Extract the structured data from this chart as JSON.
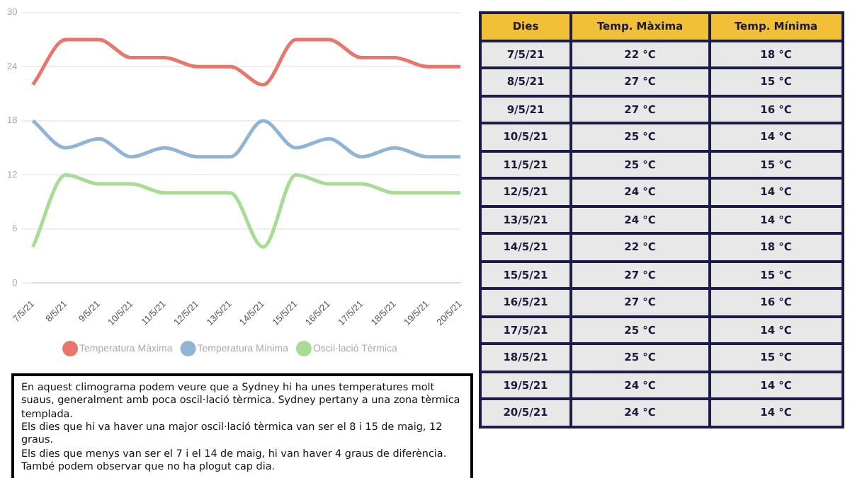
{
  "chart_data": [
    {
      "type": "line",
      "categories": [
        "7/5/21",
        "8/5/21",
        "9/5/21",
        "10/5/21",
        "11/5/21",
        "12/5/21",
        "13/5/21",
        "14/5/21",
        "15/5/21",
        "16/5/21",
        "17/5/21",
        "18/5/21",
        "19/5/21",
        "20/5/21"
      ],
      "series": [
        {
          "name": "Temperatura Màxima",
          "color": "#e8766b",
          "values": [
            22,
            27,
            27,
            25,
            25,
            24,
            24,
            22,
            27,
            27,
            25,
            25,
            24,
            24
          ]
        },
        {
          "name": "Temperatura Mínima",
          "color": "#8fb4d6",
          "values": [
            18,
            15,
            16,
            14,
            15,
            14,
            14,
            18,
            15,
            16,
            14,
            15,
            14,
            14
          ]
        },
        {
          "name": "Oscil·lació Tèrmica",
          "color": "#a8db94",
          "values": [
            4,
            12,
            11,
            11,
            10,
            10,
            10,
            4,
            12,
            11,
            11,
            10,
            10,
            10
          ]
        }
      ],
      "ylim": [
        0,
        30
      ],
      "yticks": [
        0,
        6,
        12,
        18,
        24,
        30
      ],
      "grid": "y",
      "legend": "bottom",
      "marker": "none",
      "annotations": [
        "En aquest climograma podem veure que a Sydney hi ha unes temperatures molt suaus, generalment amb poca oscil·lació tèrmica. Sydney pertany a una zona tèrmica templada.",
        "Els dies que hi va haver una major oscil·lació tèrmica van ser el 8 i 15 de maig, 12 graus.",
        "Els dies que menys van ser el 7 i el 14 de maig, hi van haver 4 graus de diferència. També podem observar que no ha plogut cap dia."
      ]
    },
    {
      "type": "heatmap",
      "ylabel": "Dies",
      "categories": [
        "Temp. Màxima",
        "Temp. Mínima"
      ],
      "y_categories": [
        "7/5/21",
        "8/5/21",
        "9/5/21",
        "10/5/21",
        "11/5/21",
        "12/5/21",
        "13/5/21",
        "14/5/21",
        "15/5/21",
        "16/5/21",
        "17/5/21",
        "18/5/21",
        "19/5/21",
        "20/5/21"
      ],
      "cells": [
        [
          22,
          18
        ],
        [
          27,
          15
        ],
        [
          27,
          16
        ],
        [
          25,
          14
        ],
        [
          25,
          15
        ],
        [
          24,
          14
        ],
        [
          24,
          14
        ],
        [
          22,
          18
        ],
        [
          27,
          15
        ],
        [
          27,
          16
        ],
        [
          25,
          14
        ],
        [
          25,
          15
        ],
        [
          24,
          14
        ],
        [
          24,
          14
        ]
      ],
      "cell_labels": [
        [
          "22 °C",
          "18 °C"
        ],
        [
          "27 °C",
          "15 °C"
        ],
        [
          "27 °C",
          "16 °C"
        ],
        [
          "25 °C",
          "14 °C"
        ],
        [
          "25 °C",
          "15 °C"
        ],
        [
          "24 °C",
          "14 °C"
        ],
        [
          "24 °C",
          "14 °C"
        ],
        [
          "22 °C",
          "18 °C"
        ],
        [
          "27 °C",
          "15 °C"
        ],
        [
          "27 °C",
          "16 °C"
        ],
        [
          "25 °C",
          "14 °C"
        ],
        [
          "25 °C",
          "15 °C"
        ],
        [
          "24 °C",
          "14 °C"
        ],
        [
          "24 °C",
          "14 °C"
        ]
      ]
    }
  ]
}
